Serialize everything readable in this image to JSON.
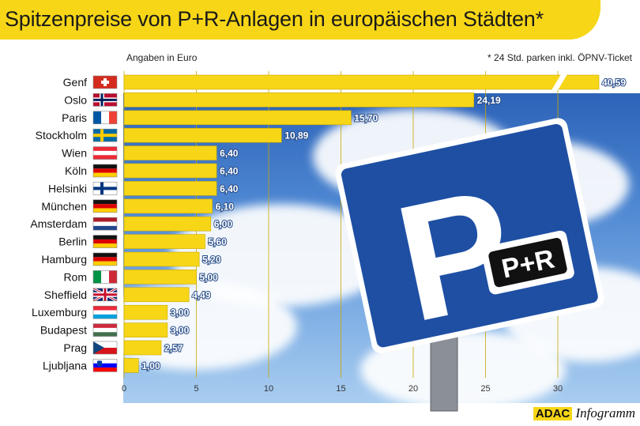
{
  "title": "Spitzenpreise von P+R-Anlagen in europäischen Städten*",
  "notes": {
    "unit": "Angaben in Euro",
    "footnote": "* 24 Std. parken inkl. ÖPNV-Ticket"
  },
  "branding": {
    "adac": "ADAC",
    "infogramm": "Infogramm"
  },
  "sign": {
    "letter": "P",
    "badge": "P+R"
  },
  "colors": {
    "bar": "#f7d617",
    "bar_stroke": "#c9a800",
    "sign_blue": "#1e4fa3"
  },
  "chart_data": {
    "type": "bar",
    "orientation": "horizontal",
    "categories": [
      "Genf",
      "Oslo",
      "Paris",
      "Stockholm",
      "Wien",
      "Köln",
      "Helsinki",
      "München",
      "Amsterdam",
      "Berlin",
      "Hamburg",
      "Rom",
      "Sheffield",
      "Luxemburg",
      "Budapest",
      "Prag",
      "Ljubljana"
    ],
    "values": [
      40.59,
      24.19,
      15.7,
      10.89,
      6.4,
      6.4,
      6.4,
      6.1,
      6.0,
      5.6,
      5.2,
      5.0,
      4.49,
      3.0,
      3.0,
      2.57,
      1.0
    ],
    "value_labels": [
      "40,59",
      "24,19",
      "15,70",
      "10,89",
      "6,40",
      "6,40",
      "6,40",
      "6,10",
      "6,00",
      "5,60",
      "5,20",
      "5,00",
      "4,49",
      "3,00",
      "3,00",
      "2,57",
      "1,00"
    ],
    "flags": [
      "flag-switzerland",
      "flag-norway",
      "flag-france",
      "flag-sweden",
      "flag-austria",
      "flag-germany",
      "flag-finland",
      "flag-germany",
      "flag-netherlands",
      "flag-germany",
      "flag-germany",
      "flag-italy",
      "flag-uk",
      "flag-luxembourg",
      "flag-hungary",
      "flag-czechia",
      "flag-slovenia"
    ],
    "x_ticks": [
      "0",
      "5",
      "10",
      "15",
      "20",
      "25",
      "30"
    ],
    "xlim": [
      0,
      33
    ],
    "axis_break": true,
    "grid": true
  }
}
